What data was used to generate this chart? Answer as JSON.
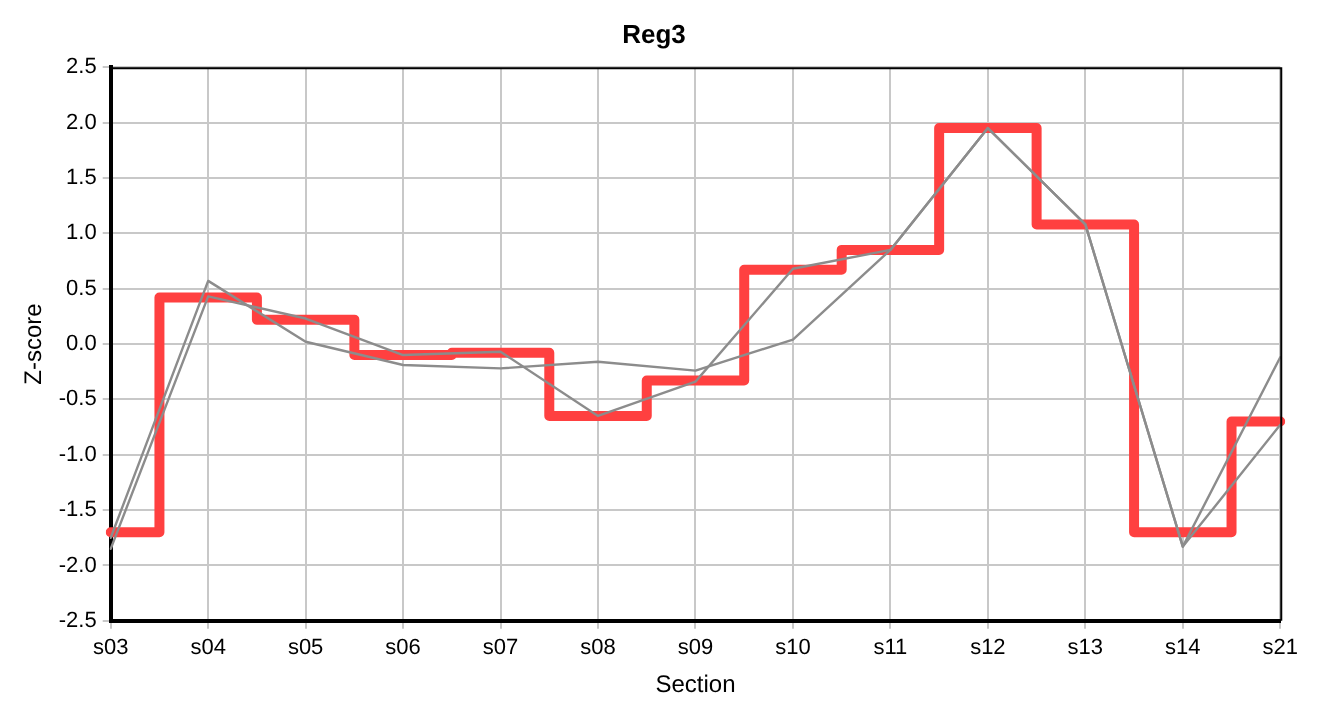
{
  "chart_data": {
    "type": "line",
    "title": "Reg3",
    "xlabel": "Section",
    "ylabel": "Z-score",
    "categories": [
      "s03",
      "s04",
      "s05",
      "s06",
      "s07",
      "s08",
      "s09",
      "s10",
      "s11",
      "s12",
      "s13",
      "s14",
      "s21"
    ],
    "series": [
      {
        "color": "#8c8c8c",
        "values": [
          -1.75,
          0.57,
          0.02,
          -0.19,
          -0.22,
          -0.16,
          -0.24,
          0.04,
          0.85,
          1.95,
          1.08,
          -1.83,
          -0.12
        ]
      },
      {
        "color": "#8c8c8c",
        "values": [
          -1.85,
          0.43,
          0.23,
          -0.1,
          -0.07,
          -0.65,
          -0.34,
          0.68,
          0.85,
          1.95,
          1.08,
          -1.83,
          -0.73
        ]
      },
      {
        "type": "step",
        "color": "#ff4040",
        "values": [
          -1.7,
          0.42,
          0.22,
          -0.1,
          -0.08,
          -0.65,
          -0.33,
          0.67,
          0.85,
          1.95,
          1.08,
          -1.7,
          -0.7
        ]
      }
    ],
    "ylim": [
      -2.5,
      2.5
    ],
    "yticks": [
      {
        "value": -2.5,
        "label": "-2.5"
      },
      {
        "value": -2,
        "label": "-2.0"
      },
      {
        "value": -1.5,
        "label": "-1.5"
      },
      {
        "value": -1,
        "label": "-1.0"
      },
      {
        "value": -0.5,
        "label": "-0.5"
      },
      {
        "value": 0,
        "label": "0.0"
      },
      {
        "value": 0.5,
        "label": "0.5"
      },
      {
        "value": 1,
        "label": "1.0"
      },
      {
        "value": 1.5,
        "label": "1.5"
      },
      {
        "value": 2,
        "label": "2.0"
      },
      {
        "value": 2.5,
        "label": "2.5"
      }
    ],
    "grid": true,
    "legend": false,
    "marker": "none",
    "line_style": "solid"
  }
}
